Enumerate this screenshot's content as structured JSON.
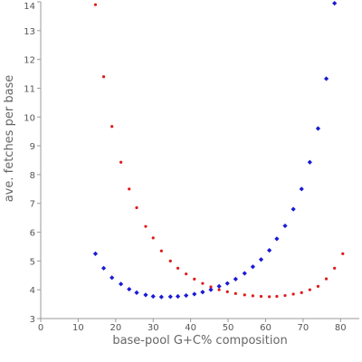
{
  "chart_data": {
    "type": "scatter",
    "xlabel": "base-pool G+C% composition",
    "ylabel": "ave. fetches per base",
    "xlim": [
      0,
      85
    ],
    "ylim": [
      3,
      14
    ],
    "xticks": [
      0,
      10,
      20,
      30,
      40,
      50,
      60,
      70,
      80
    ],
    "yticks": [
      3,
      4,
      5,
      6,
      7,
      8,
      9,
      10,
      11,
      12,
      13,
      14
    ],
    "grid": false,
    "series": [
      {
        "color": "#e01b1b",
        "marker": "dot",
        "points": [
          [
            14.6,
            13.9
          ],
          [
            16.8,
            11.4
          ],
          [
            19.0,
            9.67
          ],
          [
            21.4,
            8.43
          ],
          [
            23.6,
            7.5
          ],
          [
            25.6,
            6.85
          ],
          [
            28.0,
            6.2
          ],
          [
            30.0,
            5.8
          ],
          [
            32.2,
            5.35
          ],
          [
            34.6,
            5.0
          ],
          [
            36.6,
            4.75
          ],
          [
            38.8,
            4.55
          ],
          [
            41.0,
            4.37
          ],
          [
            43.2,
            4.22
          ],
          [
            45.4,
            4.1
          ],
          [
            47.6,
            4.0
          ],
          [
            49.8,
            3.93
          ],
          [
            52.0,
            3.87
          ],
          [
            54.4,
            3.82
          ],
          [
            56.6,
            3.79
          ],
          [
            58.8,
            3.77
          ],
          [
            61.0,
            3.76
          ],
          [
            63.0,
            3.77
          ],
          [
            65.2,
            3.8
          ],
          [
            67.4,
            3.85
          ],
          [
            69.6,
            3.9
          ],
          [
            71.8,
            4.0
          ],
          [
            74.0,
            4.12
          ],
          [
            76.2,
            4.38
          ],
          [
            78.4,
            4.75
          ],
          [
            80.6,
            5.25
          ]
        ]
      },
      {
        "color": "#1a1ad6",
        "marker": "diamond",
        "points": [
          [
            14.6,
            5.25
          ],
          [
            16.8,
            4.75
          ],
          [
            19.0,
            4.42
          ],
          [
            21.4,
            4.2
          ],
          [
            23.6,
            4.02
          ],
          [
            25.6,
            3.9
          ],
          [
            28.0,
            3.82
          ],
          [
            30.0,
            3.77
          ],
          [
            32.2,
            3.75
          ],
          [
            34.6,
            3.76
          ],
          [
            36.6,
            3.77
          ],
          [
            38.8,
            3.8
          ],
          [
            41.0,
            3.85
          ],
          [
            43.2,
            3.92
          ],
          [
            45.4,
            4.0
          ],
          [
            47.6,
            4.12
          ],
          [
            49.8,
            4.22
          ],
          [
            52.0,
            4.37
          ],
          [
            54.4,
            4.57
          ],
          [
            56.6,
            4.8
          ],
          [
            58.8,
            5.05
          ],
          [
            61.0,
            5.37
          ],
          [
            63.0,
            5.77
          ],
          [
            65.2,
            6.22
          ],
          [
            67.4,
            6.8
          ],
          [
            69.6,
            7.5
          ],
          [
            71.8,
            8.43
          ],
          [
            74.0,
            9.6
          ],
          [
            76.2,
            11.33
          ],
          [
            78.4,
            13.95
          ]
        ]
      }
    ]
  }
}
